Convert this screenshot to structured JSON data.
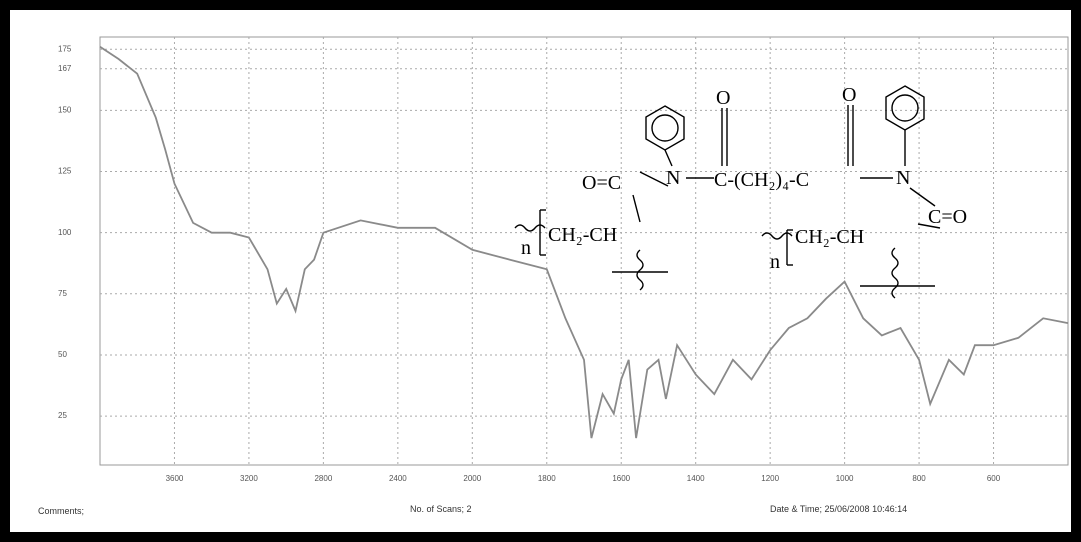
{
  "chart_data": {
    "type": "line",
    "x": [
      4000,
      3900,
      3800,
      3700,
      3650,
      3600,
      3500,
      3400,
      3300,
      3200,
      3100,
      3050,
      3000,
      2950,
      2900,
      2850,
      2800,
      2600,
      2400,
      2200,
      2000,
      1900,
      1800,
      1750,
      1700,
      1680,
      1650,
      1620,
      1600,
      1580,
      1560,
      1530,
      1500,
      1480,
      1450,
      1400,
      1350,
      1300,
      1250,
      1200,
      1150,
      1100,
      1050,
      1000,
      950,
      900,
      850,
      800,
      770,
      720,
      680,
      650,
      600,
      550,
      500,
      450
    ],
    "series": [
      {
        "color": "#8a8a8a",
        "values": [
          176,
          171,
          165,
          147,
          134,
          120,
          104,
          100,
          100,
          98,
          85,
          71,
          77,
          68,
          85,
          89,
          100,
          105,
          102,
          102,
          93,
          89,
          85,
          65,
          48,
          16,
          34,
          26,
          40,
          48,
          16,
          44,
          48,
          32,
          54,
          42,
          34,
          48,
          40,
          52,
          61,
          65,
          73,
          80,
          65,
          58,
          61,
          48,
          30,
          48,
          42,
          54,
          54,
          57,
          65,
          63
        ]
      }
    ],
    "xlim": [
      4000,
      450
    ],
    "xticks": [
      3600,
      3200,
      2800,
      2400,
      2000,
      1800,
      1600,
      1400,
      1200,
      1000,
      800,
      600
    ],
    "ylim": [
      5,
      180
    ],
    "yticks": [
      25,
      50,
      75,
      100,
      125,
      150,
      167,
      175
    ],
    "grid": true,
    "annotations": [
      "O",
      "O",
      "N",
      "N",
      "C-(CH₂)₄-C",
      "O=C",
      "C=O",
      "CH₂-CH",
      "CH₂-CH",
      "n",
      "n"
    ],
    "footer": [
      "Comments;",
      "No. of Scans; 2",
      "Date & Time; 25/06/2008 10:46:14"
    ]
  }
}
